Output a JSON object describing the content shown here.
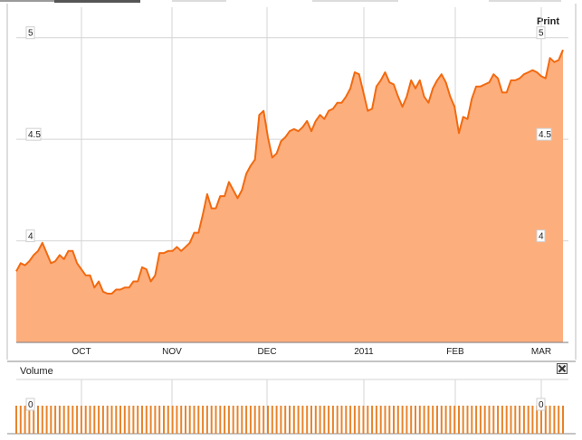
{
  "toolbar": {
    "print_label": "Print"
  },
  "volume": {
    "title": "Volume",
    "zero_label": "0",
    "bar_color": "#e8842c"
  },
  "colors": {
    "line": "#f26a10",
    "area": "#fdae7d",
    "grid": "#d4d4d4",
    "axis": "#7a7a7a"
  },
  "chart_data": {
    "type": "area",
    "ylim": [
      3.5,
      5.15
    ],
    "yticks": [
      4,
      4.5,
      5
    ],
    "ytick_labels": [
      "4",
      "4.5",
      "5"
    ],
    "x_labels": [
      "OCT",
      "NOV",
      "DEC",
      "2011",
      "FEB",
      "MAR"
    ],
    "grid": true,
    "values": [
      3.85,
      3.89,
      3.88,
      3.9,
      3.93,
      3.95,
      3.99,
      3.94,
      3.89,
      3.9,
      3.93,
      3.91,
      3.95,
      3.95,
      3.89,
      3.86,
      3.83,
      3.83,
      3.77,
      3.8,
      3.75,
      3.74,
      3.74,
      3.76,
      3.76,
      3.77,
      3.77,
      3.8,
      3.8,
      3.87,
      3.86,
      3.8,
      3.83,
      3.94,
      3.94,
      3.95,
      3.95,
      3.97,
      3.95,
      3.97,
      3.99,
      4.04,
      4.04,
      4.13,
      4.23,
      4.16,
      4.16,
      4.22,
      4.22,
      4.29,
      4.25,
      4.21,
      4.25,
      4.33,
      4.37,
      4.4,
      4.62,
      4.64,
      4.51,
      4.41,
      4.43,
      4.49,
      4.51,
      4.54,
      4.55,
      4.54,
      4.56,
      4.59,
      4.54,
      4.59,
      4.62,
      4.6,
      4.64,
      4.65,
      4.68,
      4.68,
      4.71,
      4.75,
      4.83,
      4.82,
      4.73,
      4.64,
      4.65,
      4.76,
      4.79,
      4.83,
      4.78,
      4.77,
      4.71,
      4.66,
      4.71,
      4.79,
      4.75,
      4.79,
      4.71,
      4.68,
      4.75,
      4.79,
      4.82,
      4.78,
      4.71,
      4.66,
      4.53,
      4.61,
      4.6,
      4.7,
      4.76,
      4.76,
      4.77,
      4.78,
      4.82,
      4.8,
      4.73,
      4.73,
      4.79,
      4.79,
      4.8,
      4.82,
      4.83,
      4.84,
      4.83,
      4.81,
      4.8,
      4.9,
      4.88,
      4.89,
      4.94
    ],
    "volume": [
      0
    ]
  }
}
